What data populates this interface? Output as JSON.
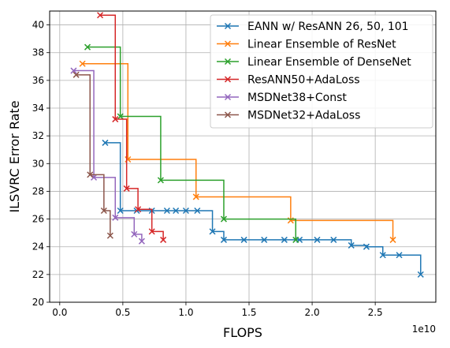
{
  "chart_data": {
    "type": "line",
    "line_shape": "step-post",
    "xlabel": "FLOPS",
    "ylabel": "ILSVRC Error Rate",
    "x_exponent_label": "1e10",
    "x_scale_factor": 10000000000,
    "xlim": [
      -0.08,
      2.98
    ],
    "ylim": [
      20,
      41
    ],
    "x_ticks": [
      0.0,
      0.5,
      1.0,
      1.5,
      2.0,
      2.5
    ],
    "x_tick_labels": [
      "0.0",
      "0.5",
      "1.0",
      "1.5",
      "2.0",
      "2.5"
    ],
    "y_ticks": [
      20,
      22,
      24,
      26,
      28,
      30,
      32,
      34,
      36,
      38,
      40
    ],
    "y_tick_labels": [
      "20",
      "22",
      "24",
      "26",
      "28",
      "30",
      "32",
      "34",
      "36",
      "38",
      "40"
    ],
    "grid": true,
    "legend_position": "top-right",
    "series": [
      {
        "name": "EANN w/ ResANN 26, 50, 101",
        "color": "#1f77b4",
        "marker": "x",
        "x": [
          0.36,
          0.48,
          0.61,
          0.73,
          0.85,
          0.92,
          1.0,
          1.09,
          1.21,
          1.3,
          1.46,
          1.62,
          1.78,
          1.9,
          2.04,
          2.17,
          2.31,
          2.43,
          2.56,
          2.69,
          2.86
        ],
        "y": [
          31.5,
          26.6,
          26.6,
          26.6,
          26.6,
          26.6,
          26.6,
          26.6,
          25.1,
          24.5,
          24.5,
          24.5,
          24.5,
          24.5,
          24.5,
          24.5,
          24.1,
          24.0,
          23.4,
          23.4,
          22.0
        ]
      },
      {
        "name": "Linear Ensemble of ResNet",
        "color": "#ff7f0e",
        "marker": "x",
        "x": [
          0.18,
          0.54,
          1.08,
          1.83,
          2.64
        ],
        "y": [
          37.2,
          30.3,
          27.6,
          25.9,
          24.5
        ]
      },
      {
        "name": "Linear Ensemble of DenseNet",
        "color": "#2ca02c",
        "marker": "x",
        "x": [
          0.22,
          0.48,
          0.8,
          1.3,
          1.87
        ],
        "y": [
          38.4,
          33.4,
          28.8,
          26.0,
          24.5
        ]
      },
      {
        "name": "ResANN50+AdaLoss",
        "color": "#d62728",
        "marker": "x",
        "x": [
          0.32,
          0.44,
          0.53,
          0.62,
          0.73,
          0.82
        ],
        "y": [
          40.7,
          33.2,
          28.2,
          26.7,
          25.1,
          24.5
        ]
      },
      {
        "name": "MSDNet38+Const",
        "color": "#9467bd",
        "marker": "x",
        "x": [
          0.11,
          0.27,
          0.44,
          0.59,
          0.65
        ],
        "y": [
          36.7,
          29.0,
          26.1,
          24.9,
          24.4
        ]
      },
      {
        "name": "MSDNet32+AdaLoss",
        "color": "#8c564b",
        "marker": "x",
        "x": [
          0.13,
          0.24,
          0.35,
          0.4
        ],
        "y": [
          36.4,
          29.2,
          26.6,
          24.8
        ]
      }
    ]
  }
}
